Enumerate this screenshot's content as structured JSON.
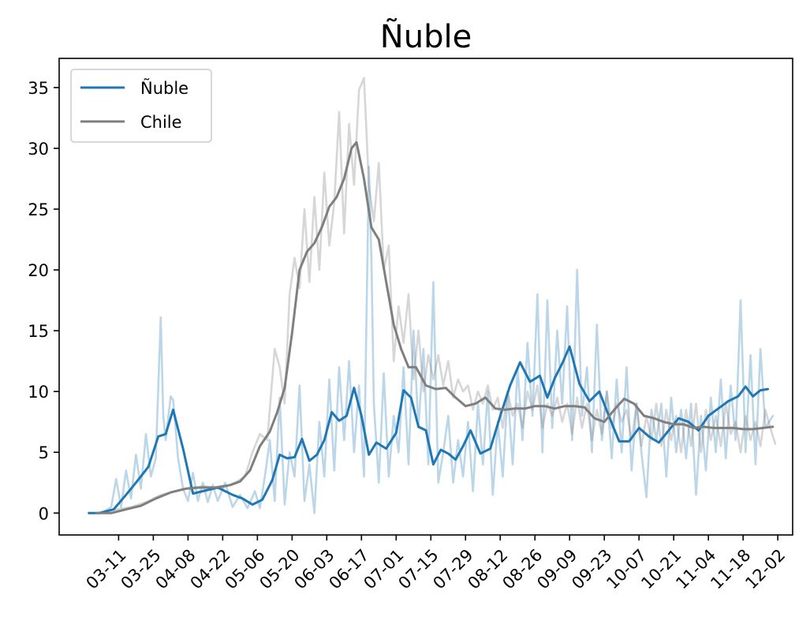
{
  "chart_data": {
    "type": "line",
    "title": "Ñuble",
    "xlabel": "",
    "ylabel": "",
    "x_ticks": [
      "03-11",
      "03-25",
      "04-08",
      "04-22",
      "05-06",
      "05-20",
      "06-03",
      "06-17",
      "07-01",
      "07-15",
      "07-29",
      "08-12",
      "08-26",
      "09-09",
      "09-23",
      "10-07",
      "10-21",
      "11-04",
      "11-18",
      "12-02"
    ],
    "y_ticks": [
      0,
      5,
      10,
      15,
      20,
      25,
      30,
      35
    ],
    "ylim": [
      -1.8,
      37.4
    ],
    "xlim": [
      "2020-02-16",
      "2020-12-08"
    ],
    "grid": false,
    "legend_position": "top-left",
    "series": [
      {
        "name": "Ñuble",
        "color": "#1f77b4",
        "style": "solid",
        "x": [
          "2020-02-28",
          "2020-03-03",
          "2020-03-09",
          "2020-03-14",
          "2020-03-18",
          "2020-03-23",
          "2020-03-27",
          "2020-03-30",
          "2020-04-02",
          "2020-04-06",
          "2020-04-10",
          "2020-04-14",
          "2020-04-20",
          "2020-04-26",
          "2020-04-30",
          "2020-05-04",
          "2020-05-08",
          "2020-05-12",
          "2020-05-15",
          "2020-05-18",
          "2020-05-21",
          "2020-05-24",
          "2020-05-27",
          "2020-05-30",
          "2020-06-02",
          "2020-06-05",
          "2020-06-08",
          "2020-06-11",
          "2020-06-14",
          "2020-06-17",
          "2020-06-20",
          "2020-06-23",
          "2020-06-27",
          "2020-07-01",
          "2020-07-04",
          "2020-07-07",
          "2020-07-10",
          "2020-07-13",
          "2020-07-16",
          "2020-07-19",
          "2020-07-22",
          "2020-07-25",
          "2020-07-28",
          "2020-07-31",
          "2020-08-04",
          "2020-08-08",
          "2020-08-12",
          "2020-08-16",
          "2020-08-20",
          "2020-08-24",
          "2020-08-28",
          "2020-08-31",
          "2020-09-03",
          "2020-09-06",
          "2020-09-09",
          "2020-09-13",
          "2020-09-17",
          "2020-09-21",
          "2020-09-25",
          "2020-09-29",
          "2020-10-03",
          "2020-10-07",
          "2020-10-11",
          "2020-10-15",
          "2020-10-19",
          "2020-10-23",
          "2020-10-27",
          "2020-10-31",
          "2020-11-04",
          "2020-11-08",
          "2020-11-12",
          "2020-11-16",
          "2020-11-19",
          "2020-11-22",
          "2020-11-25",
          "2020-11-28"
        ],
        "values": [
          0,
          0,
          0.3,
          1.5,
          2.5,
          3.8,
          6.3,
          6.5,
          8.5,
          5.3,
          1.6,
          1.8,
          2.1,
          1.5,
          1.2,
          0.7,
          1.1,
          2.7,
          4.8,
          4.5,
          4.6,
          6.1,
          4.3,
          4.8,
          6.0,
          8.3,
          7.6,
          8.0,
          10.3,
          8.0,
          4.8,
          5.8,
          5.3,
          6.6,
          10.1,
          9.5,
          7.1,
          6.8,
          4.0,
          5.2,
          4.9,
          4.4,
          5.5,
          6.8,
          4.9,
          5.3,
          8.0,
          10.5,
          12.4,
          10.8,
          11.3,
          9.5,
          11.1,
          12.3,
          13.7,
          10.6,
          9.2,
          10.0,
          7.9,
          5.9,
          5.9,
          7.0,
          6.3,
          5.8,
          6.8,
          7.8,
          7.5,
          6.8,
          8.0,
          8.6,
          9.2,
          9.6,
          10.4,
          9.6,
          10.1,
          10.2
        ]
      },
      {
        "name": "",
        "color": "#1f77b4",
        "style": "raw",
        "x": [
          "2020-02-28",
          "2020-03-04",
          "2020-03-08",
          "2020-03-10",
          "2020-03-12",
          "2020-03-14",
          "2020-03-16",
          "2020-03-18",
          "2020-03-20",
          "2020-03-22",
          "2020-03-24",
          "2020-03-26",
          "2020-03-28",
          "2020-03-29",
          "2020-03-30",
          "2020-04-01",
          "2020-04-02",
          "2020-04-04",
          "2020-04-06",
          "2020-04-08",
          "2020-04-10",
          "2020-04-12",
          "2020-04-14",
          "2020-04-16",
          "2020-04-18",
          "2020-04-20",
          "2020-04-23",
          "2020-04-26",
          "2020-04-29",
          "2020-05-02",
          "2020-05-05",
          "2020-05-07",
          "2020-05-09",
          "2020-05-11",
          "2020-05-13",
          "2020-05-15",
          "2020-05-17",
          "2020-05-19",
          "2020-05-21",
          "2020-05-23",
          "2020-05-25",
          "2020-05-27",
          "2020-05-29",
          "2020-05-31",
          "2020-06-02",
          "2020-06-04",
          "2020-06-06",
          "2020-06-08",
          "2020-06-10",
          "2020-06-12",
          "2020-06-14",
          "2020-06-16",
          "2020-06-18",
          "2020-06-20",
          "2020-06-21",
          "2020-06-22",
          "2020-06-24",
          "2020-06-26",
          "2020-06-28",
          "2020-06-30",
          "2020-07-02",
          "2020-07-04",
          "2020-07-06",
          "2020-07-08",
          "2020-07-10",
          "2020-07-12",
          "2020-07-14",
          "2020-07-16",
          "2020-07-18",
          "2020-07-20",
          "2020-07-22",
          "2020-07-24",
          "2020-07-26",
          "2020-07-28",
          "2020-07-30",
          "2020-08-01",
          "2020-08-03",
          "2020-08-05",
          "2020-08-07",
          "2020-08-09",
          "2020-08-11",
          "2020-08-13",
          "2020-08-15",
          "2020-08-17",
          "2020-08-19",
          "2020-08-21",
          "2020-08-23",
          "2020-08-25",
          "2020-08-27",
          "2020-08-29",
          "2020-08-31",
          "2020-09-02",
          "2020-09-04",
          "2020-09-06",
          "2020-09-08",
          "2020-09-10",
          "2020-09-12",
          "2020-09-14",
          "2020-09-16",
          "2020-09-18",
          "2020-09-20",
          "2020-09-22",
          "2020-09-24",
          "2020-09-26",
          "2020-09-28",
          "2020-09-30",
          "2020-10-02",
          "2020-10-04",
          "2020-10-06",
          "2020-10-08",
          "2020-10-10",
          "2020-10-12",
          "2020-10-14",
          "2020-10-16",
          "2020-10-18",
          "2020-10-20",
          "2020-10-22",
          "2020-10-24",
          "2020-10-26",
          "2020-10-28",
          "2020-10-30",
          "2020-11-01",
          "2020-11-03",
          "2020-11-05",
          "2020-11-07",
          "2020-11-09",
          "2020-11-11",
          "2020-11-13",
          "2020-11-15",
          "2020-11-17",
          "2020-11-19",
          "2020-11-21",
          "2020-11-23",
          "2020-11-25",
          "2020-11-27",
          "2020-11-30"
        ],
        "values": [
          0,
          0,
          0.5,
          2.8,
          0.5,
          3.5,
          1.2,
          4.8,
          2.0,
          6.5,
          3.0,
          4.5,
          16.1,
          8.0,
          6.0,
          9.6,
          9.3,
          4.5,
          2.0,
          1.0,
          3.3,
          1.0,
          2.5,
          0.9,
          2.3,
          1.0,
          2.5,
          0.5,
          1.5,
          0.4,
          1.8,
          0.4,
          3.0,
          6.0,
          1.0,
          9.5,
          0.7,
          5.0,
          3.0,
          10.5,
          1.0,
          4.0,
          0.0,
          7.5,
          3.0,
          11.0,
          3.5,
          12.0,
          6.0,
          12.5,
          5.0,
          10.5,
          3.0,
          28.5,
          21.0,
          9.0,
          2.5,
          11.5,
          3.0,
          8.0,
          5.0,
          12.0,
          4.0,
          15.0,
          7.0,
          13.5,
          4.0,
          19.0,
          2.5,
          5.0,
          8.0,
          2.5,
          6.0,
          3.0,
          7.5,
          1.8,
          9.0,
          4.0,
          10.0,
          1.5,
          7.5,
          3.0,
          10.0,
          4.0,
          12.0,
          6.0,
          14.0,
          8.0,
          18.0,
          5.0,
          17.5,
          7.0,
          15.0,
          9.0,
          17.0,
          6.0,
          20.0,
          8.0,
          12.0,
          5.0,
          15.5,
          6.0,
          10.0,
          4.5,
          11.0,
          5.0,
          12.0,
          3.5,
          9.0,
          5.0,
          1.3,
          8.5,
          6.0,
          9.0,
          3.0,
          9.5,
          5.0,
          8.5,
          4.5,
          9.0,
          1.5,
          8.0,
          3.5,
          9.5,
          5.0,
          11.0,
          4.5,
          10.5,
          6.0,
          17.5,
          5.0,
          13.0,
          4.0,
          13.5,
          7.0,
          8.0
        ]
      },
      {
        "name": "Chile",
        "color": "#7f7f7f",
        "style": "solid",
        "x": [
          "2020-03-02",
          "2020-03-08",
          "2020-03-14",
          "2020-03-20",
          "2020-03-26",
          "2020-04-01",
          "2020-04-07",
          "2020-04-13",
          "2020-04-19",
          "2020-04-25",
          "2020-04-29",
          "2020-05-03",
          "2020-05-07",
          "2020-05-11",
          "2020-05-14",
          "2020-05-17",
          "2020-05-20",
          "2020-05-23",
          "2020-05-26",
          "2020-05-29",
          "2020-06-01",
          "2020-06-04",
          "2020-06-07",
          "2020-06-10",
          "2020-06-13",
          "2020-06-15",
          "2020-06-18",
          "2020-06-21",
          "2020-06-24",
          "2020-06-27",
          "2020-06-30",
          "2020-07-03",
          "2020-07-06",
          "2020-07-09",
          "2020-07-13",
          "2020-07-17",
          "2020-07-21",
          "2020-07-25",
          "2020-07-29",
          "2020-08-02",
          "2020-08-06",
          "2020-08-10",
          "2020-08-14",
          "2020-08-18",
          "2020-08-22",
          "2020-08-26",
          "2020-08-30",
          "2020-09-03",
          "2020-09-07",
          "2020-09-11",
          "2020-09-15",
          "2020-09-19",
          "2020-09-23",
          "2020-09-27",
          "2020-10-01",
          "2020-10-05",
          "2020-10-09",
          "2020-10-13",
          "2020-10-17",
          "2020-10-21",
          "2020-10-25",
          "2020-10-29",
          "2020-11-02",
          "2020-11-06",
          "2020-11-10",
          "2020-11-14",
          "2020-11-18",
          "2020-11-22",
          "2020-11-26",
          "2020-11-30"
        ],
        "values": [
          0,
          0,
          0.3,
          0.6,
          1.2,
          1.7,
          2.0,
          2.1,
          2.1,
          2.3,
          2.6,
          3.5,
          5.5,
          6.7,
          8.3,
          10.3,
          14.8,
          20.0,
          21.5,
          22.2,
          23.5,
          25.2,
          26.0,
          27.5,
          30.0,
          30.5,
          27.5,
          23.5,
          22.5,
          19.0,
          15.5,
          13.5,
          12.0,
          12.0,
          10.5,
          10.2,
          10.3,
          9.5,
          8.8,
          9.0,
          9.5,
          8.6,
          8.5,
          8.6,
          8.6,
          8.8,
          8.8,
          8.6,
          8.8,
          8.8,
          8.7,
          7.8,
          7.5,
          8.5,
          9.4,
          9.0,
          8.0,
          7.8,
          7.5,
          7.3,
          7.3,
          7.0,
          7.1,
          7.0,
          7.0,
          7.0,
          6.9,
          6.9,
          7.0,
          7.1
        ]
      },
      {
        "name": "",
        "color": "#7f7f7f",
        "style": "raw",
        "x": [
          "2020-03-04",
          "2020-03-10",
          "2020-03-16",
          "2020-03-22",
          "2020-03-28",
          "2020-04-03",
          "2020-04-09",
          "2020-04-15",
          "2020-04-21",
          "2020-04-27",
          "2020-05-01",
          "2020-05-04",
          "2020-05-07",
          "2020-05-10",
          "2020-05-13",
          "2020-05-15",
          "2020-05-17",
          "2020-05-19",
          "2020-05-21",
          "2020-05-23",
          "2020-05-25",
          "2020-05-27",
          "2020-05-29",
          "2020-05-31",
          "2020-06-02",
          "2020-06-04",
          "2020-06-06",
          "2020-06-08",
          "2020-06-10",
          "2020-06-12",
          "2020-06-14",
          "2020-06-16",
          "2020-06-18",
          "2020-06-20",
          "2020-06-22",
          "2020-06-24",
          "2020-06-26",
          "2020-06-28",
          "2020-06-30",
          "2020-07-02",
          "2020-07-04",
          "2020-07-06",
          "2020-07-08",
          "2020-07-10",
          "2020-07-12",
          "2020-07-14",
          "2020-07-16",
          "2020-07-18",
          "2020-07-20",
          "2020-07-22",
          "2020-07-24",
          "2020-07-26",
          "2020-07-28",
          "2020-07-30",
          "2020-08-01",
          "2020-08-03",
          "2020-08-05",
          "2020-08-07",
          "2020-08-09",
          "2020-08-11",
          "2020-08-13",
          "2020-08-15",
          "2020-08-17",
          "2020-08-19",
          "2020-08-21",
          "2020-08-23",
          "2020-08-25",
          "2020-08-27",
          "2020-08-29",
          "2020-08-31",
          "2020-09-02",
          "2020-09-04",
          "2020-09-06",
          "2020-09-08",
          "2020-09-10",
          "2020-09-12",
          "2020-09-14",
          "2020-09-16",
          "2020-09-18",
          "2020-09-20",
          "2020-09-22",
          "2020-09-24",
          "2020-09-26",
          "2020-09-28",
          "2020-09-30",
          "2020-10-02",
          "2020-10-04",
          "2020-10-06",
          "2020-10-08",
          "2020-10-10",
          "2020-10-12",
          "2020-10-14",
          "2020-10-16",
          "2020-10-18",
          "2020-10-20",
          "2020-10-22",
          "2020-10-24",
          "2020-10-26",
          "2020-10-28",
          "2020-10-30",
          "2020-11-01",
          "2020-11-03",
          "2020-11-05",
          "2020-11-07",
          "2020-11-09",
          "2020-11-11",
          "2020-11-13",
          "2020-11-15",
          "2020-11-17",
          "2020-11-19",
          "2020-11-21",
          "2020-11-23",
          "2020-11-25",
          "2020-11-27",
          "2020-11-29",
          "2020-12-01"
        ],
        "values": [
          0,
          0.3,
          0.5,
          0.9,
          1.5,
          1.8,
          2.1,
          2.2,
          2.0,
          2.5,
          3.0,
          5.0,
          6.5,
          6.0,
          13.5,
          12.0,
          9.0,
          18.0,
          21.0,
          18.5,
          25.0,
          19.0,
          26.0,
          20.0,
          28.0,
          22.0,
          25.5,
          33.0,
          23.0,
          32.0,
          27.0,
          34.8,
          35.8,
          27.0,
          24.0,
          28.8,
          20.0,
          22.0,
          12.5,
          17.0,
          14.0,
          18.0,
          11.0,
          15.0,
          10.0,
          13.0,
          11.0,
          13.0,
          10.5,
          12.5,
          9.5,
          11.0,
          10.0,
          10.5,
          8.5,
          10.0,
          9.0,
          10.5,
          8.5,
          9.5,
          7.0,
          10.0,
          8.0,
          9.0,
          7.0,
          10.0,
          8.5,
          10.5,
          7.0,
          9.0,
          8.0,
          9.5,
          7.5,
          9.0,
          6.5,
          9.5,
          7.0,
          9.0,
          6.0,
          8.5,
          6.5,
          10.0,
          7.0,
          9.0,
          7.5,
          8.5,
          6.0,
          9.0,
          5.5,
          8.0,
          6.0,
          9.0,
          5.5,
          8.5,
          6.0,
          8.0,
          5.0,
          8.5,
          5.5,
          9.0,
          5.0,
          8.5,
          6.0,
          8.0,
          5.5,
          9.0,
          6.5,
          7.5,
          5.0,
          8.0,
          6.0,
          7.5,
          5.5,
          8.5,
          7.0,
          5.7
        ]
      }
    ]
  }
}
